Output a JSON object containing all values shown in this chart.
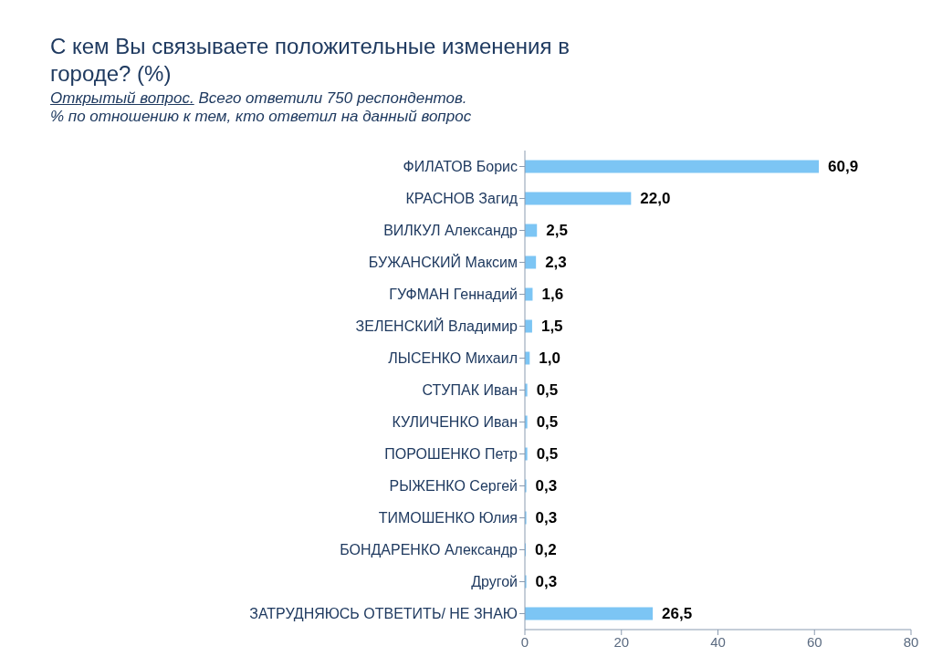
{
  "chart_data": {
    "type": "bar",
    "orientation": "horizontal",
    "title": "С кем Вы связываете положительные изменения в городе? (%)",
    "subtitle": "Открытый вопрос. Всего ответили 750 респондентов.",
    "annotations": [
      "% по отношению к тем, кто ответил на данный вопрос"
    ],
    "categories": [
      "ФИЛАТОВ Борис",
      "КРАСНОВ Загид",
      "ВИЛКУЛ Александр",
      "БУЖАНСКИЙ Максим",
      "ГУФМАН Геннадий",
      "ЗЕЛЕНСКИЙ Владимир",
      "ЛЫСЕНКО Михаил",
      "СТУПАК Иван",
      "КУЛИЧЕНКО Иван",
      "ПОРОШЕНКО Петр",
      "РЫЖЕНКО Сергей",
      "ТИМОШЕНКО Юлия",
      "БОНДАРЕНКО Александр",
      "Другой",
      "ЗАТРУДНЯЮСЬ ОТВЕТИТЬ/ НЕ ЗНАЮ"
    ],
    "values": [
      60.9,
      22.0,
      2.5,
      2.3,
      1.6,
      1.5,
      1.0,
      0.5,
      0.5,
      0.5,
      0.3,
      0.3,
      0.2,
      0.3,
      26.5
    ],
    "value_labels": [
      "60,9",
      "22,0",
      "2,5",
      "2,3",
      "1,6",
      "1,5",
      "1,0",
      "0,5",
      "0,5",
      "0,5",
      "0,3",
      "0,3",
      "0,2",
      "0,3",
      "26,5"
    ],
    "color": "#7cc5f4",
    "xlim": [
      0,
      80
    ],
    "xticks": [
      0,
      20,
      40,
      60,
      80
    ]
  }
}
